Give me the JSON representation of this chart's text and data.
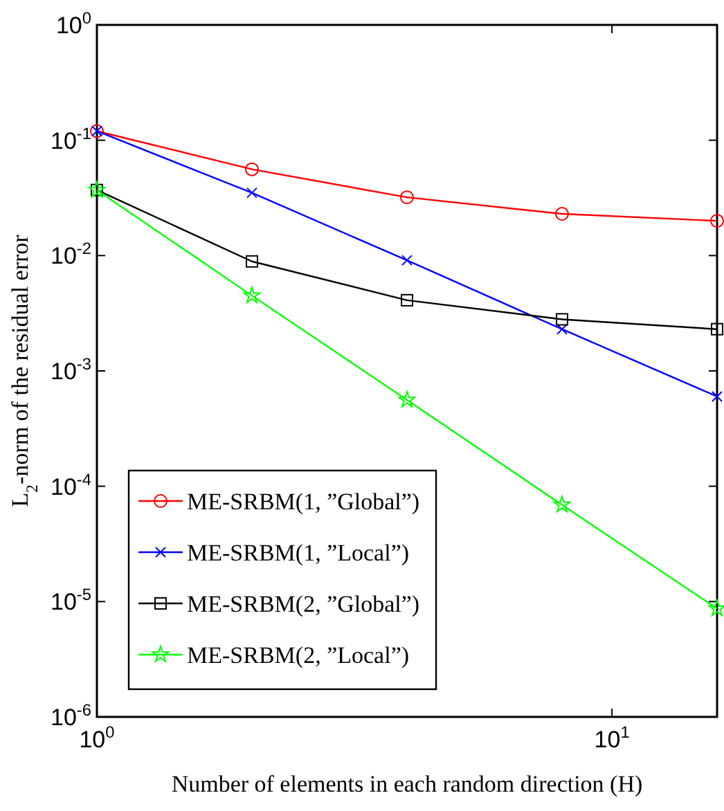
{
  "chart_data": {
    "type": "line",
    "xlabel": "Number of elements in each random direction (H)",
    "ylabel": "L$_{2}$-norm of the residual error",
    "log": "xy",
    "grid": false,
    "legend": "bottom left",
    "x": [
      1,
      2,
      4,
      8,
      16
    ],
    "xlim": [
      1,
      16
    ],
    "xticks": [
      {
        "value": 1,
        "label": "10$^{0}$"
      },
      {
        "value": 10,
        "label": "10$^{1}$"
      }
    ],
    "ylim": [
      1e-06,
      1
    ],
    "yticks": [
      {
        "value": 1e-06,
        "label": "10$^{-6}$"
      },
      {
        "value": 1e-05,
        "label": "10$^{-5}$"
      },
      {
        "value": 0.0001,
        "label": "10$^{-4}$"
      },
      {
        "value": 0.001,
        "label": "10$^{-3}$"
      },
      {
        "value": 0.01,
        "label": "10$^{-2}$"
      },
      {
        "value": 0.1,
        "label": "10$^{-1}$"
      },
      {
        "value": 1,
        "label": "10$^{0}$"
      }
    ],
    "series": [
      {
        "name": "ME-SRBM(1, ”Global”)",
        "color": "#ff0000",
        "marker": "circle",
        "values": [
          0.12,
          0.056,
          0.032,
          0.023,
          0.02
        ]
      },
      {
        "name": "ME-SRBM(1, ”Local”)",
        "color": "#0000ff",
        "marker": "cross",
        "values": [
          0.12,
          0.035,
          0.0091,
          0.0023,
          0.0006
        ]
      },
      {
        "name": "ME-SRBM(2, ”Global”)",
        "color": "#000000",
        "marker": "square",
        "values": [
          0.037,
          0.0089,
          0.0041,
          0.0028,
          0.0023
        ]
      },
      {
        "name": "ME-SRBM(2, ”Local”)",
        "color": "#00ff00",
        "marker": "star",
        "values": [
          0.037,
          0.0045,
          0.00056,
          6.9e-05,
          8.7e-06
        ]
      }
    ]
  }
}
